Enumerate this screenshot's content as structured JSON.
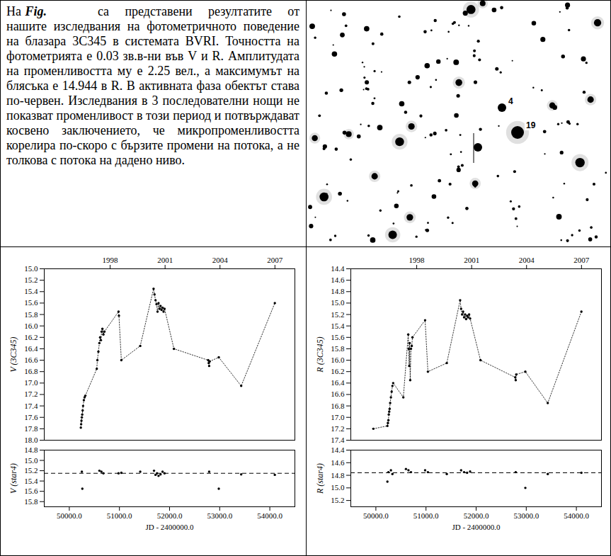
{
  "text": {
    "before": "На",
    "emphasis": "Fig.",
    "after": "са представени резултатите от нашите изследвания на фотометричното поведение на блазара 3C345 в системата BVRI. Точността на фотометрията е 0.03 зв.в-ни във V и R. Амплитудата на променливостта му е 2.25 вел., а максимумът на блясъка е 14.944 в R. В активната фаза обектът става по-червен. Изследвания в 3 последователни нощи не показват променливост в този период и потвърждават косвено заключението, че микропроменливостта корелира по-скоро с бързите промени на потока, а не толкова с потока на дадено ниво."
  },
  "finder_chart": {
    "labels": [
      "4",
      "19"
    ]
  },
  "chart_data": [
    {
      "type": "line",
      "marker": "dot",
      "line_style": "dotted",
      "tick_labels": "y",
      "ylabel": "V (3C345)",
      "x": [
        50230,
        50236,
        50242,
        50250,
        50258,
        50266,
        50275,
        50290,
        50305,
        50320,
        50548,
        50560,
        50580,
        50600,
        50615,
        50630,
        50645,
        50660,
        50680,
        50700,
        50982,
        50990,
        51038,
        51415,
        51681,
        51700,
        51720,
        51740,
        51760,
        51780,
        51800,
        51820,
        51840,
        51860,
        51880,
        51900,
        52087,
        52770,
        52780,
        52790,
        52800,
        52982,
        53429,
        54100
      ],
      "values": [
        17.78,
        17.72,
        17.66,
        17.6,
        17.55,
        17.48,
        17.4,
        17.3,
        17.25,
        17.22,
        16.75,
        16.6,
        16.45,
        16.3,
        16.2,
        16.25,
        16.1,
        16.05,
        16.15,
        16.1,
        15.75,
        15.82,
        16.6,
        16.35,
        15.35,
        15.45,
        15.55,
        15.62,
        15.75,
        15.6,
        15.7,
        15.65,
        15.72,
        15.68,
        15.75,
        15.7,
        16.4,
        16.6,
        16.65,
        16.7,
        16.62,
        16.55,
        17.05,
        15.6
      ],
      "xlim": [
        49500,
        54500
      ],
      "ylim": [
        18.0,
        15.0
      ],
      "yticks": [
        {
          "value": 15,
          "label": "15.0"
        },
        15.2,
        15.4,
        15.6,
        15.8,
        {
          "value": 16,
          "label": "16.0"
        },
        16.2,
        16.4,
        16.6,
        16.8,
        {
          "value": 17,
          "label": "17.0"
        },
        17.2,
        17.4,
        17.6,
        17.8,
        {
          "value": 18,
          "label": "18.0"
        }
      ],
      "x2lim": [
        1994.4,
        2008.09
      ],
      "x2ticks": [
        1998,
        2001,
        2004,
        2007
      ]
    },
    {
      "type": "scatter",
      "marker": "dot",
      "ylabel": "V (star4)",
      "xlabel": "JD - 2400000.0",
      "x": [
        50250,
        50260,
        50600,
        50640,
        50680,
        50982,
        51038,
        51415,
        51690,
        51720,
        51750,
        51780,
        51820,
        51860,
        51900,
        52790,
        52982,
        53429,
        54100
      ],
      "values": [
        15.22,
        15.55,
        15.2,
        15.22,
        15.25,
        15.25,
        15.24,
        15.22,
        15.2,
        15.28,
        15.25,
        15.3,
        15.27,
        15.22,
        15.25,
        15.22,
        15.55,
        15.27,
        15.28
      ],
      "level": 15.25,
      "xlim": [
        49500,
        54500
      ],
      "ylim": [
        15.9,
        14.8
      ],
      "xticks": [
        {
          "value": 50000,
          "label": "50000.0"
        },
        {
          "value": 51000,
          "label": "51000.0"
        },
        {
          "value": 52000,
          "label": "52000.0"
        },
        {
          "value": 53000,
          "label": "53000.0"
        },
        {
          "value": 54000,
          "label": "54000.0"
        }
      ],
      "yticks": [
        14.8,
        {
          "value": 15,
          "label": "15.0"
        },
        15.2,
        15.4,
        15.6,
        15.8
      ]
    },
    {
      "type": "line",
      "marker": "dot",
      "line_style": "dotted",
      "tick_labels": "y",
      "ylabel": "R (3C345)",
      "x": [
        49950,
        50230,
        50240,
        50250,
        50258,
        50266,
        50275,
        50285,
        50300,
        50315,
        50330,
        50345,
        50548,
        50646,
        50655,
        50665,
        50674,
        50685,
        50700,
        50716,
        50730,
        50982,
        51038,
        51415,
        51681,
        51700,
        51720,
        51740,
        51760,
        51780,
        51800,
        51820,
        51840,
        51860,
        51880,
        52087,
        52780,
        52790,
        52800,
        52982,
        53429,
        54100
      ],
      "values": [
        17.2,
        17.15,
        17.1,
        17.05,
        16.95,
        16.9,
        16.85,
        16.75,
        16.65,
        16.55,
        16.45,
        16.4,
        16.65,
        15.55,
        15.8,
        16.1,
        15.7,
        16.35,
        15.8,
        15.75,
        15.6,
        15.3,
        16.2,
        16.05,
        14.95,
        15.1,
        15.2,
        15.15,
        15.25,
        15.2,
        15.28,
        15.22,
        15.25,
        15.2,
        15.27,
        16.0,
        16.3,
        16.35,
        16.25,
        16.2,
        16.75,
        15.15
      ],
      "xlim": [
        49500,
        54500
      ],
      "ylim": [
        17.4,
        14.4
      ],
      "yticks": [
        14.4,
        14.6,
        14.8,
        {
          "value": 15,
          "label": "15.0"
        },
        15.2,
        15.4,
        15.6,
        15.8,
        {
          "value": 16,
          "label": "16.0"
        },
        16.2,
        16.4,
        16.6,
        16.8,
        {
          "value": 17,
          "label": "17.0"
        },
        17.2,
        17.4
      ],
      "x2lim": [
        1994.4,
        2008.09
      ],
      "x2ticks": [
        1998,
        2001,
        2004,
        2007
      ]
    },
    {
      "type": "scatter",
      "marker": "dot",
      "ylabel": "R (star4)",
      "xlabel": "JD - 2400000.0",
      "x": [
        50230,
        50250,
        50300,
        50330,
        50600,
        50650,
        50700,
        50982,
        51038,
        51415,
        51700,
        51760,
        51820,
        51880,
        52790,
        52982,
        53429,
        54100
      ],
      "values": [
        14.9,
        14.75,
        14.72,
        14.78,
        14.7,
        14.72,
        14.75,
        14.72,
        14.75,
        14.78,
        14.72,
        14.75,
        14.76,
        14.74,
        14.75,
        15.0,
        14.78,
        14.76
      ],
      "level": 14.76,
      "xlim": [
        49500,
        54500
      ],
      "ylim": [
        15.3,
        14.4
      ],
      "xticks": [
        {
          "value": 50000,
          "label": "50000.0"
        },
        {
          "value": 51000,
          "label": "51000.0"
        },
        {
          "value": 52000,
          "label": "52000.0"
        },
        {
          "value": 53000,
          "label": "53000.0"
        },
        {
          "value": 54000,
          "label": "54000.0"
        }
      ],
      "yticks": [
        14.4,
        14.6,
        14.8,
        {
          "value": 15,
          "label": "15.0"
        },
        15.2
      ]
    }
  ]
}
